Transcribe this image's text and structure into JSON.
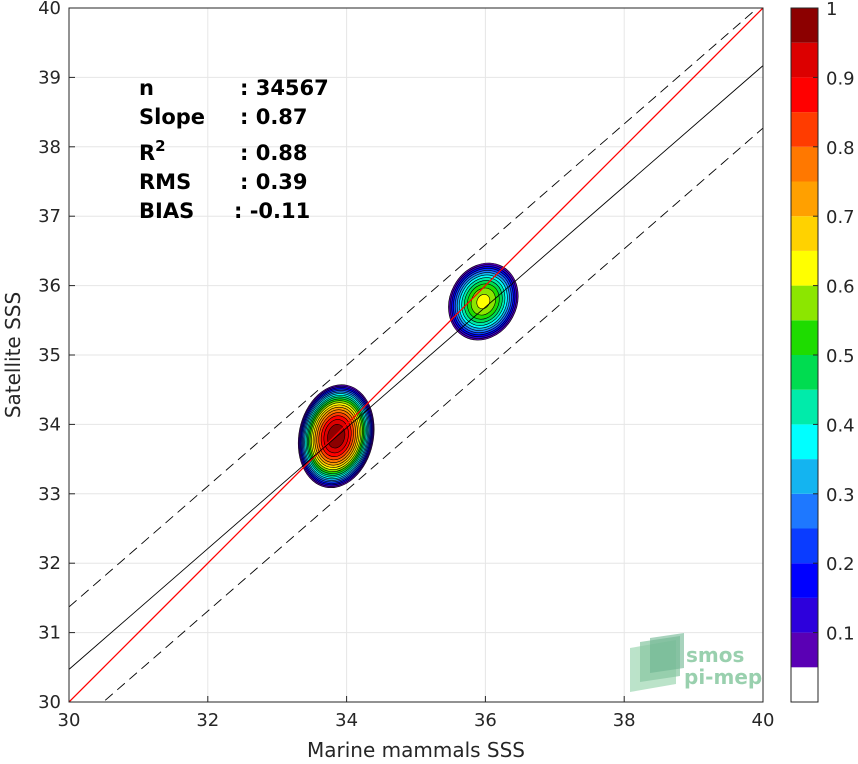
{
  "chart_data": {
    "type": "heatmap",
    "subtype": "density contour scatter comparison",
    "xlabel": "Marine mammals SSS",
    "ylabel": "Satellite SSS",
    "xlim": [
      30,
      40
    ],
    "ylim": [
      30,
      40
    ],
    "x_ticks": [
      30,
      32,
      34,
      36,
      38,
      40
    ],
    "y_ticks": [
      30,
      31,
      32,
      33,
      34,
      35,
      36,
      37,
      38,
      39,
      40
    ],
    "grid": true,
    "stats": [
      {
        "label": "n",
        "sep": ":",
        "value": "34567"
      },
      {
        "label": "Slope",
        "sep": ":",
        "value": "0.87"
      },
      {
        "label": "R",
        "sup": "2",
        "sep": ":",
        "value": "0.88"
      },
      {
        "label": "RMS",
        "sep": ":",
        "value": "0.39"
      },
      {
        "label": "BIAS",
        "sep": ":",
        "value": "-0.11"
      }
    ],
    "lines": [
      {
        "name": "one-to-one",
        "color": "#ff0000",
        "dash": false,
        "x": [
          30,
          40
        ],
        "y": [
          30,
          40
        ]
      },
      {
        "name": "regression",
        "color": "#000000",
        "dash": false,
        "x": [
          30,
          40
        ],
        "y": [
          30.47,
          39.17
        ]
      },
      {
        "name": "upper-bound",
        "color": "#000000",
        "dash": true,
        "x": [
          30,
          40
        ],
        "y": [
          31.37,
          40.07
        ]
      },
      {
        "name": "lower-bound",
        "color": "#000000",
        "dash": true,
        "x": [
          30,
          40
        ],
        "y": [
          29.57,
          38.27
        ]
      }
    ],
    "clusters": [
      {
        "cx": 33.85,
        "cy": 33.83,
        "rx": 0.55,
        "ry": 0.77,
        "tilt_deg": 12,
        "peak": 1.0
      },
      {
        "cx": 35.97,
        "cy": 35.77,
        "rx": 0.5,
        "ry": 0.6,
        "tilt_deg": 28,
        "peak": 0.62
      }
    ],
    "colorbar": {
      "min": 0,
      "max": 1,
      "tick_values": [
        0.1,
        0.2,
        0.3,
        0.4,
        0.5,
        0.6,
        0.7,
        0.8,
        0.9,
        1
      ],
      "tick_labels": [
        "0.1",
        "0.2",
        "0.3",
        "0.4",
        "0.5",
        "0.6",
        "0.7",
        "0.8",
        "0.9",
        "1"
      ],
      "levels": [
        {
          "from": 0.05,
          "to": 0.1,
          "color": "#5a00b4"
        },
        {
          "from": 0.1,
          "to": 0.15,
          "color": "#2d00dc"
        },
        {
          "from": 0.15,
          "to": 0.2,
          "color": "#0000ff"
        },
        {
          "from": 0.2,
          "to": 0.25,
          "color": "#0a3cff"
        },
        {
          "from": 0.25,
          "to": 0.3,
          "color": "#1e78ff"
        },
        {
          "from": 0.3,
          "to": 0.35,
          "color": "#14b4f0"
        },
        {
          "from": 0.35,
          "to": 0.4,
          "color": "#00ffff"
        },
        {
          "from": 0.4,
          "to": 0.45,
          "color": "#00ebaa"
        },
        {
          "from": 0.45,
          "to": 0.5,
          "color": "#00dc50"
        },
        {
          "from": 0.5,
          "to": 0.55,
          "color": "#1edc00"
        },
        {
          "from": 0.55,
          "to": 0.6,
          "color": "#8ce600"
        },
        {
          "from": 0.6,
          "to": 0.65,
          "color": "#ffff00"
        },
        {
          "from": 0.65,
          "to": 0.7,
          "color": "#ffd200"
        },
        {
          "from": 0.7,
          "to": 0.75,
          "color": "#ffa000"
        },
        {
          "from": 0.75,
          "to": 0.8,
          "color": "#ff7800"
        },
        {
          "from": 0.8,
          "to": 0.85,
          "color": "#ff3c00"
        },
        {
          "from": 0.85,
          "to": 0.9,
          "color": "#ff0000"
        },
        {
          "from": 0.9,
          "to": 0.95,
          "color": "#dc0000"
        },
        {
          "from": 0.95,
          "to": 1.0,
          "color": "#8c0000"
        }
      ]
    }
  },
  "logo": {
    "line1": "smos",
    "line2": "pi-mep"
  }
}
